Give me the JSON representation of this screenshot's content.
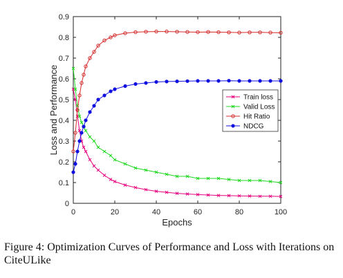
{
  "caption": "Figure 4: Optimization Curves of Performance and Loss with Iterations on CiteULike",
  "chart_data": {
    "type": "line",
    "xlabel": "Epochs",
    "ylabel": "Loss and Performance",
    "xlim": [
      0,
      100
    ],
    "ylim": [
      0,
      0.9
    ],
    "xticks": [
      "0",
      "20",
      "40",
      "60",
      "80",
      "100"
    ],
    "yticks": [
      "0",
      "0.1",
      "0.2",
      "0.3",
      "0.4",
      "0.5",
      "0.6",
      "0.7",
      "0.8",
      "0.9"
    ],
    "grid": false,
    "legend_position": "center-right",
    "x": [
      0,
      1,
      2,
      3,
      4,
      5,
      6,
      8,
      10,
      12,
      15,
      18,
      20,
      25,
      30,
      35,
      40,
      45,
      50,
      55,
      60,
      65,
      70,
      75,
      80,
      85,
      90,
      95,
      100
    ],
    "series": [
      {
        "name": "Train loss",
        "color": "#e6007e",
        "marker": "x",
        "values": [
          0.55,
          0.5,
          0.42,
          0.35,
          0.3,
          0.27,
          0.25,
          0.21,
          0.18,
          0.16,
          0.135,
          0.115,
          0.105,
          0.088,
          0.076,
          0.066,
          0.058,
          0.053,
          0.048,
          0.045,
          0.042,
          0.04,
          0.038,
          0.037,
          0.036,
          0.035,
          0.034,
          0.034,
          0.033
        ]
      },
      {
        "name": "Valid Loss",
        "color": "#1fd81f",
        "marker": "x",
        "values": [
          0.65,
          0.55,
          0.47,
          0.42,
          0.39,
          0.37,
          0.35,
          0.32,
          0.3,
          0.27,
          0.25,
          0.23,
          0.21,
          0.19,
          0.17,
          0.16,
          0.15,
          0.14,
          0.13,
          0.13,
          0.12,
          0.12,
          0.12,
          0.115,
          0.11,
          0.11,
          0.11,
          0.105,
          0.1
        ]
      },
      {
        "name": "Hit Ratio",
        "color": "#d42a2a",
        "marker": "o",
        "values": [
          0.25,
          0.34,
          0.45,
          0.52,
          0.58,
          0.62,
          0.66,
          0.7,
          0.73,
          0.76,
          0.785,
          0.8,
          0.81,
          0.82,
          0.825,
          0.827,
          0.828,
          0.828,
          0.827,
          0.826,
          0.825,
          0.826,
          0.825,
          0.824,
          0.823,
          0.824,
          0.824,
          0.823,
          0.822
        ]
      },
      {
        "name": "NDCG",
        "color": "#1010e0",
        "marker": "*",
        "values": [
          0.15,
          0.19,
          0.25,
          0.3,
          0.34,
          0.37,
          0.4,
          0.44,
          0.47,
          0.5,
          0.52,
          0.54,
          0.55,
          0.565,
          0.575,
          0.58,
          0.585,
          0.587,
          0.588,
          0.589,
          0.59,
          0.59,
          0.59,
          0.591,
          0.59,
          0.59,
          0.59,
          0.59,
          0.59
        ]
      }
    ]
  }
}
